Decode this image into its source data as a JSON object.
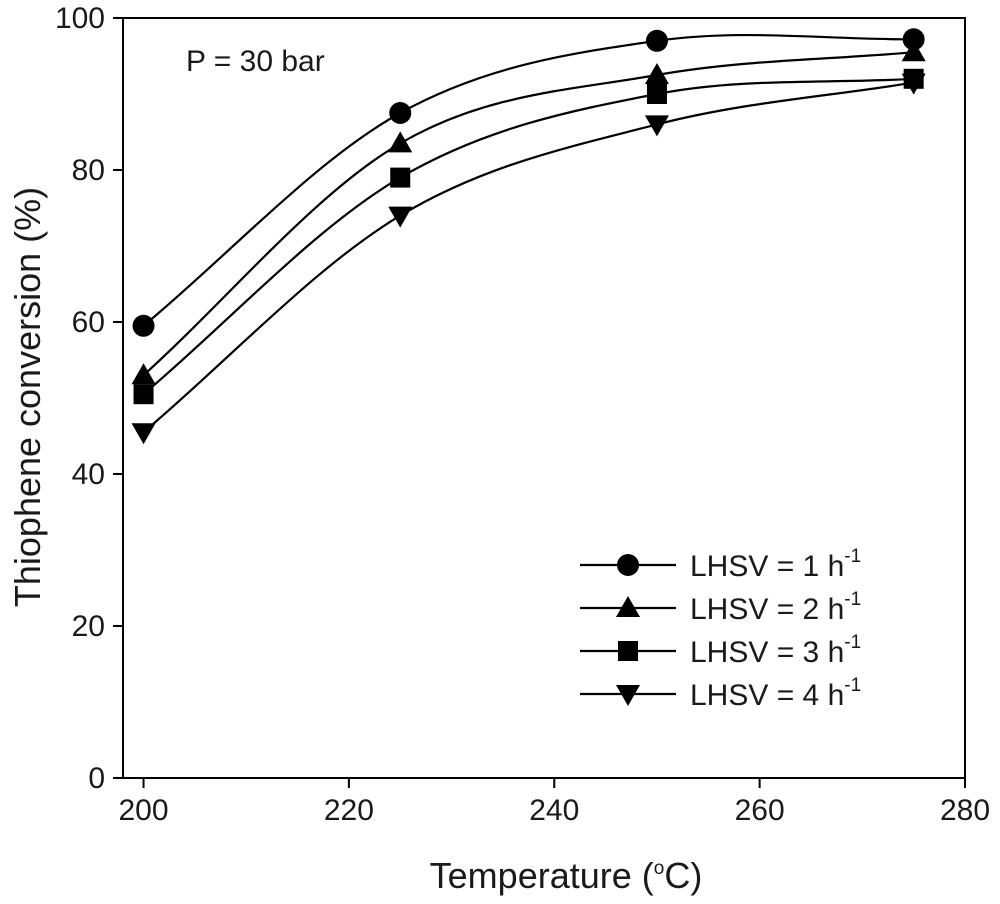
{
  "chart_data": {
    "type": "line",
    "xlabel": {
      "text": "Temperature (",
      "sup": "o",
      "suffix": "C)"
    },
    "ylabel": "Thiophene conversion (%)",
    "annotation": "P = 30 bar",
    "xlim": [
      198,
      280
    ],
    "ylim": [
      0,
      100
    ],
    "xticks": [
      200,
      220,
      240,
      260,
      280
    ],
    "yticks": [
      0,
      20,
      40,
      60,
      80,
      100
    ],
    "x": [
      200,
      225,
      250,
      275
    ],
    "legend_position": "bottom-right",
    "series": [
      {
        "name": "LHSV = 1 h",
        "name_sup": "-1",
        "marker": "circle",
        "values": [
          59.5,
          87.5,
          97.0,
          97.2
        ]
      },
      {
        "name": "LHSV = 2 h",
        "name_sup": "-1",
        "marker": "triangle-up",
        "values": [
          53.0,
          83.5,
          92.5,
          95.5
        ]
      },
      {
        "name": "LHSV = 3 h",
        "name_sup": "-1",
        "marker": "square",
        "values": [
          50.5,
          79.0,
          90.0,
          92.0
        ]
      },
      {
        "name": "LHSV = 4 h",
        "name_sup": "-1",
        "marker": "triangle-down",
        "values": [
          45.5,
          74.0,
          86.0,
          91.5
        ]
      }
    ]
  }
}
